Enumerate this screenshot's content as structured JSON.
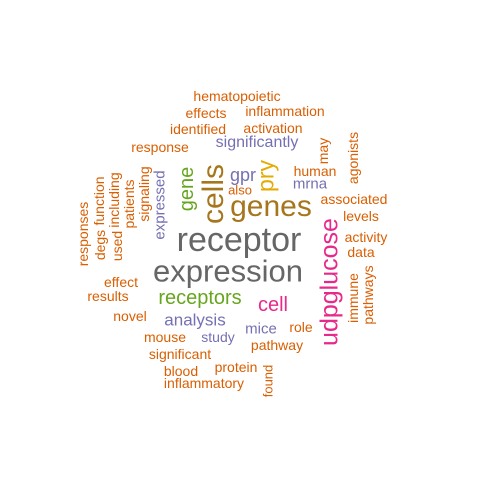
{
  "colors": {
    "orange": "#D95F02",
    "purple": "#7570B3",
    "pink": "#E7298A",
    "green": "#66A61E",
    "gold": "#E6AB02",
    "brown": "#A6761D",
    "gray": "#666666"
  },
  "words": {
    "receptor": "receptor",
    "expression": "expression",
    "genes": "genes",
    "cells": "cells",
    "udpglucose": "udpglucose",
    "receptors": "receptors",
    "cell": "cell",
    "pry": "pry",
    "gene": "gene",
    "analysis": "analysis",
    "significantly": "significantly",
    "gpr": "gpr",
    "mice": "mice",
    "mrna": "mrna",
    "human": "human",
    "expressed": "expressed",
    "study": "study",
    "pathway": "pathway",
    "role": "role",
    "associated": "associated",
    "activity": "activity",
    "levels": "levels",
    "data": "data",
    "immune": "immune",
    "pathways": "pathways",
    "agonists": "agonists",
    "may": "may",
    "also": "also",
    "activation": "activation",
    "inflammation": "inflammation",
    "effects": "effects",
    "hematopoietic": "hematopoietic",
    "identified": "identified",
    "response": "response",
    "signaling": "signaling",
    "patients": "patients",
    "including": "including",
    "function": "function",
    "used": "used",
    "degs": "degs",
    "responses": "responses",
    "effect": "effect",
    "results": "results",
    "novel": "novel",
    "mouse": "mouse",
    "significant": "significant",
    "protein": "protein",
    "blood": "blood",
    "inflammatory": "inflammatory",
    "found": "found"
  }
}
